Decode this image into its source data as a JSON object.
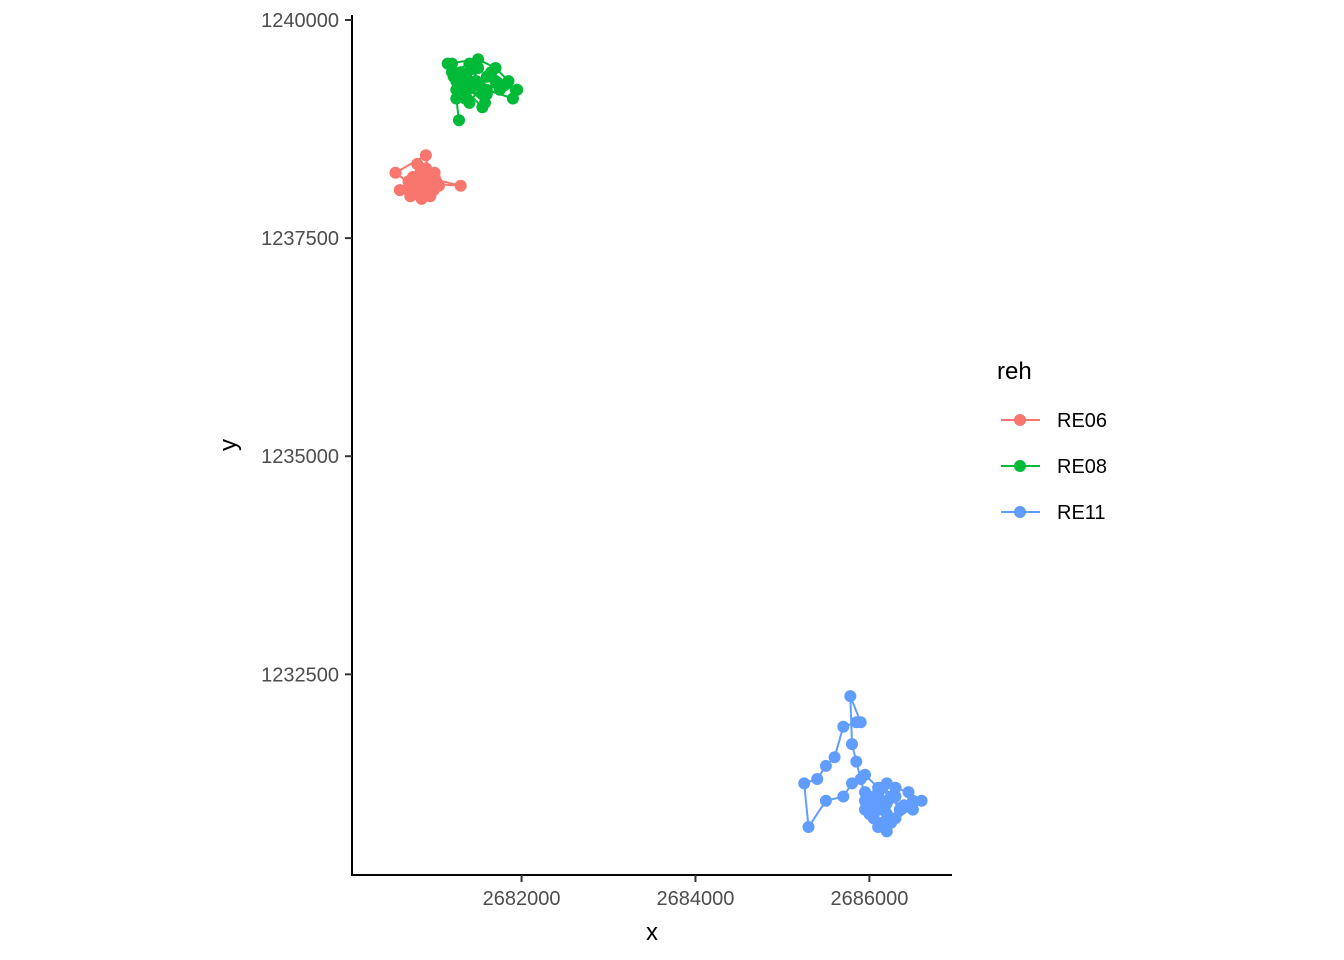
{
  "chart_data": {
    "type": "scatter",
    "title": "",
    "xlabel": "x",
    "ylabel": "y",
    "xlim": [
      2680050,
      2686950
    ],
    "ylim": [
      1230200,
      1240000
    ],
    "x_ticks": [
      2682000,
      2684000,
      2686000
    ],
    "x_tick_labels": [
      "2682000",
      "2684000",
      "2686000"
    ],
    "y_ticks": [
      1232500,
      1235000,
      1237500,
      1240000
    ],
    "y_tick_labels": [
      "1232500",
      "1235000",
      "1237500",
      "1240000"
    ],
    "grid": false,
    "legend": {
      "title": "reh",
      "position": "right"
    },
    "series": [
      {
        "name": "RE06",
        "color": "#F8766D",
        "mode": "lines+markers",
        "x": [
          2680850,
          2680700,
          2680750,
          2680920,
          2681050,
          2681000,
          2680900,
          2680800,
          2680950,
          2681020,
          2680880,
          2680780,
          2680720,
          2680830,
          2680970,
          2681000,
          2680860,
          2680760,
          2680900,
          2680990,
          2680820,
          2680700,
          2680600,
          2680800,
          2680850,
          2680950,
          2680900,
          2680550,
          2680750,
          2680800,
          2680880,
          2680950,
          2681000,
          2681300,
          2680980,
          2680870,
          2680780,
          2680830
        ],
        "y": [
          1238100,
          1238050,
          1238200,
          1238150,
          1238100,
          1238250,
          1238300,
          1238050,
          1238000,
          1238150,
          1238220,
          1238120,
          1237980,
          1238020,
          1238080,
          1238200,
          1238250,
          1238180,
          1238120,
          1238050,
          1238100,
          1238150,
          1238050,
          1238000,
          1237950,
          1238020,
          1238450,
          1238250,
          1238100,
          1238350,
          1238050,
          1237980,
          1238120,
          1238100,
          1238180,
          1238220,
          1238160,
          1238080
        ]
      },
      {
        "name": "RE08",
        "color": "#00BA38",
        "mode": "lines+markers",
        "x": [
          2681300,
          2681400,
          2681250,
          2681500,
          2681350,
          2681600,
          2681450,
          2681200,
          2681550,
          2681700,
          2681800,
          2681950,
          2681650,
          2681400,
          2681300,
          2681150,
          2681500,
          2681700,
          2681850,
          2681900,
          2681600,
          2681350,
          2681250,
          2681450,
          2681550,
          2681300,
          2681200,
          2681400,
          2681600,
          2681750,
          2681480,
          2681320,
          2681380,
          2681520,
          2681420,
          2681220,
          2681580,
          2681350,
          2681250,
          2681280
        ],
        "y": [
          1239400,
          1239300,
          1239200,
          1239450,
          1239100,
          1239350,
          1239250,
          1239500,
          1239150,
          1239300,
          1239250,
          1239200,
          1239400,
          1239050,
          1239150,
          1239500,
          1239550,
          1239450,
          1239300,
          1239100,
          1239200,
          1239350,
          1239300,
          1239450,
          1239000,
          1239250,
          1239400,
          1239500,
          1239150,
          1239200,
          1239300,
          1239350,
          1239200,
          1239250,
          1239450,
          1239350,
          1239050,
          1239300,
          1239100,
          1238850
        ]
      },
      {
        "name": "RE11",
        "color": "#619CFF",
        "mode": "lines+markers",
        "x": [
          2686000,
          2686100,
          2686200,
          2686300,
          2686150,
          2686050,
          2685950,
          2686400,
          2686500,
          2686600,
          2686250,
          2686100,
          2686000,
          2685900,
          2685850,
          2685800,
          2685780,
          2685900,
          2685850,
          2685700,
          2685600,
          2685500,
          2685400,
          2685250,
          2685300,
          2685500,
          2685700,
          2685800,
          2685950,
          2686100,
          2686250,
          2686350,
          2686500,
          2686450,
          2686300,
          2686150,
          2686050,
          2686200,
          2686100,
          2686000,
          2686300,
          2686200,
          2686150,
          2686000,
          2685950,
          2686050,
          2686200,
          2686100,
          2685950,
          2686000
        ],
        "y": [
          1231000,
          1231050,
          1230900,
          1231100,
          1231200,
          1230850,
          1231150,
          1231000,
          1230950,
          1231050,
          1230800,
          1230750,
          1230900,
          1231300,
          1231500,
          1231700,
          1232250,
          1231950,
          1231950,
          1231900,
          1231550,
          1231450,
          1231300,
          1231250,
          1230750,
          1231050,
          1231100,
          1231250,
          1231350,
          1231200,
          1231100,
          1230950,
          1231050,
          1231150,
          1231200,
          1230800,
          1230900,
          1231050,
          1231150,
          1231000,
          1230850,
          1230700,
          1230950,
          1231100,
          1230950,
          1230850,
          1231250,
          1230950,
          1231050,
          1230900
        ]
      }
    ]
  }
}
